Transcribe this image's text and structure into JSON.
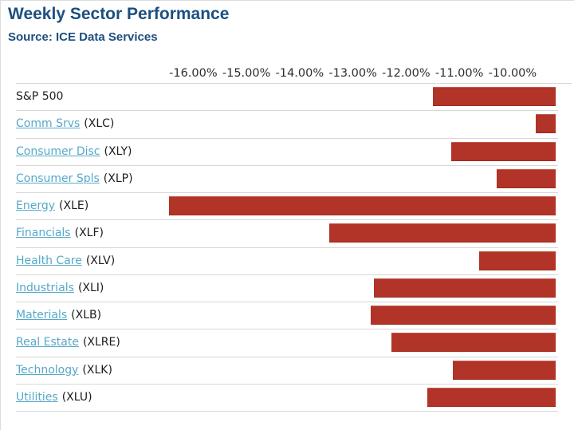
{
  "header": {
    "title": "Weekly Sector Performance",
    "source": "Source: ICE Data Services"
  },
  "colors": {
    "title_blue": "#1c4f80",
    "bar_red": "#b23327",
    "link_teal": "#55a9c9",
    "separator_gray": "#d7d7d7",
    "axis_text": "#2d2d2d"
  },
  "chart_data": {
    "type": "bar",
    "orientation": "horizontal",
    "title": "Weekly Sector Performance",
    "subtitle": "Source: ICE Data Services",
    "xlabel": "",
    "ylabel": "",
    "xlim": [
      -16.56,
      -9.19
    ],
    "axis_position": "top",
    "grid": "row-separator-lines",
    "legend": "none",
    "bar_color": "#b23327",
    "tick_labels": [
      "-16.00%",
      "-15.00%",
      "-14.00%",
      "-13.00%",
      "-12.00%",
      "-11.00%",
      "-10.00%"
    ],
    "rows": [
      {
        "label": "S&P 500",
        "ticker": "",
        "value": -11.49,
        "is_link": false
      },
      {
        "label": "Comm Srvs",
        "ticker": "(XLC)",
        "value": -9.57,
        "is_link": true
      },
      {
        "label": "Consumer Disc",
        "ticker": "(XLY)",
        "value": -11.15,
        "is_link": true
      },
      {
        "label": "Consumer Spls",
        "ticker": "(XLP)",
        "value": -10.3,
        "is_link": true
      },
      {
        "label": "Energy",
        "ticker": "(XLE)",
        "value": -16.45,
        "is_link": true
      },
      {
        "label": "Financials",
        "ticker": "(XLF)",
        "value": -13.45,
        "is_link": true
      },
      {
        "label": "Health Care",
        "ticker": "(XLV)",
        "value": -10.63,
        "is_link": true
      },
      {
        "label": "Industrials",
        "ticker": "(XLI)",
        "value": -12.61,
        "is_link": true
      },
      {
        "label": "Materials",
        "ticker": "(XLB)",
        "value": -12.67,
        "is_link": true
      },
      {
        "label": "Real Estate",
        "ticker": "(XLRE)",
        "value": -12.28,
        "is_link": true
      },
      {
        "label": "Technology",
        "ticker": "(XLK)",
        "value": -11.12,
        "is_link": true
      },
      {
        "label": "Utilities",
        "ticker": "(XLU)",
        "value": -11.6,
        "is_link": true
      }
    ]
  }
}
